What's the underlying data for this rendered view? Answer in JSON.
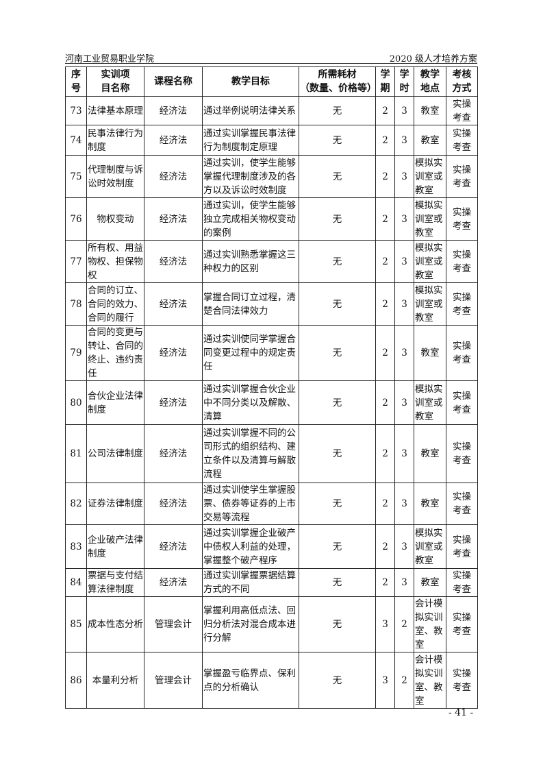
{
  "header": {
    "left": "河南工业贸易职业学院",
    "right": "2020 级人才培养方案"
  },
  "table": {
    "columns": [
      "序\n号",
      "实训项\n目名称",
      "课程名称",
      "教学目标",
      "所需耗材\n（数量、价格等）",
      "学\n期",
      "学\n时",
      "教学\n地点",
      "考核\n方式"
    ],
    "rows": [
      {
        "no": "73",
        "name": "法律基本原理",
        "course": "经济法",
        "goal": "通过举例说明法律关系",
        "materials": "无",
        "term": "2",
        "hours": "3",
        "place": "教室",
        "assess": "实操\n考查"
      },
      {
        "no": "74",
        "name": "民事法律行为\n制度",
        "course": "经济法",
        "goal": "通过实训掌握民事法律\n行为制度制定原理",
        "materials": "无",
        "term": "2",
        "hours": "3",
        "place": "教室",
        "assess": "实操\n考查"
      },
      {
        "no": "75",
        "name": "代理制度与诉\n讼时效制度",
        "course": "经济法",
        "goal": "通过实训，使学生能够\n掌握代理制度涉及的各\n方以及诉讼时效制度",
        "materials": "无",
        "term": "2",
        "hours": "3",
        "place": "模拟实\n训室或\n教室",
        "assess": "实操\n考查"
      },
      {
        "no": "76",
        "name": "物权变动",
        "course": "经济法",
        "goal": "通过实训，使学生能够\n独立完成相关物权变动\n的案例",
        "materials": "无",
        "term": "2",
        "hours": "3",
        "place": "模拟实\n训室或\n教室",
        "assess": "实操\n考查"
      },
      {
        "no": "77",
        "name": "所有权、用益\n物权、担保物\n权",
        "course": "经济法",
        "goal": "通过实训熟悉掌握这三\n种权力的区别",
        "materials": "无",
        "term": "2",
        "hours": "3",
        "place": "模拟实\n训室或\n教室",
        "assess": "实操\n考查"
      },
      {
        "no": "78",
        "name": "合同的订立、\n合同的效力、\n合同的履行",
        "course": "经济法",
        "goal": "掌握合同订立过程，清\n楚合同法律效力",
        "materials": "无",
        "term": "2",
        "hours": "3",
        "place": "模拟实\n训室或\n教室",
        "assess": "实操\n考查"
      },
      {
        "no": "79",
        "name": "合同的变更与\n转让、合同的\n终止、违约责\n任",
        "course": "经济法",
        "goal": "通过实训使同学掌握合\n同变更过程中的规定责\n任",
        "materials": "无",
        "term": "2",
        "hours": "3",
        "place": "教室",
        "assess": "实操\n考查"
      },
      {
        "no": "80",
        "name": "合伙企业法律\n制度",
        "course": "经济法",
        "goal": "通过实训掌握合伙企业\n中不同分类以及解散、\n清算",
        "materials": "无",
        "term": "2",
        "hours": "3",
        "place": "模拟实\n训室或\n教室",
        "assess": "实操\n考查"
      },
      {
        "no": "81",
        "name": "公司法律制度",
        "course": "经济法",
        "goal": "通过实训掌握不同的公\n司形式的组织结构、建\n立条件以及清算与解散\n流程",
        "materials": "无",
        "term": "2",
        "hours": "3",
        "place": "教室",
        "assess": "实操\n考查"
      },
      {
        "no": "82",
        "name": "证券法律制度",
        "course": "经济法",
        "goal": "通过实训使学生掌握股\n票、债券等证券的上市\n交易等流程",
        "materials": "无",
        "term": "2",
        "hours": "3",
        "place": "教室",
        "assess": "实操\n考查"
      },
      {
        "no": "83",
        "name": "企业破产法律\n制度",
        "course": "经济法",
        "goal": "通过实训掌握企业破产\n中债权人利益的处理，\n掌握整个破产程序",
        "materials": "无",
        "term": "2",
        "hours": "3",
        "place": "模拟实\n训室或\n教室",
        "assess": "实操\n考查"
      },
      {
        "no": "84",
        "name": "票据与支付结\n算法律制度",
        "course": "经济法",
        "goal": "通过实训掌握票据结算\n方式的不同",
        "materials": "无",
        "term": "2",
        "hours": "3",
        "place": "教室",
        "assess": "实操\n考查"
      },
      {
        "no": "85",
        "name": "成本性态分析",
        "course": "管理会计",
        "goal": "掌握利用高低点法、回\n归分析法对混合成本进\n行分解",
        "materials": "无",
        "term": "3",
        "hours": "2",
        "place": "会计模\n拟实训\n室、教\n室",
        "assess": "实操\n考查"
      },
      {
        "no": "86",
        "name": "本量利分析",
        "course": "管理会计",
        "goal": "掌握盈亏临界点、保利\n点的分析确认",
        "materials": "无",
        "term": "3",
        "hours": "2",
        "place": "会计模\n拟实训\n室、教\n室",
        "assess": "实操\n考查"
      }
    ]
  },
  "footer": {
    "page": "- 41 -"
  }
}
